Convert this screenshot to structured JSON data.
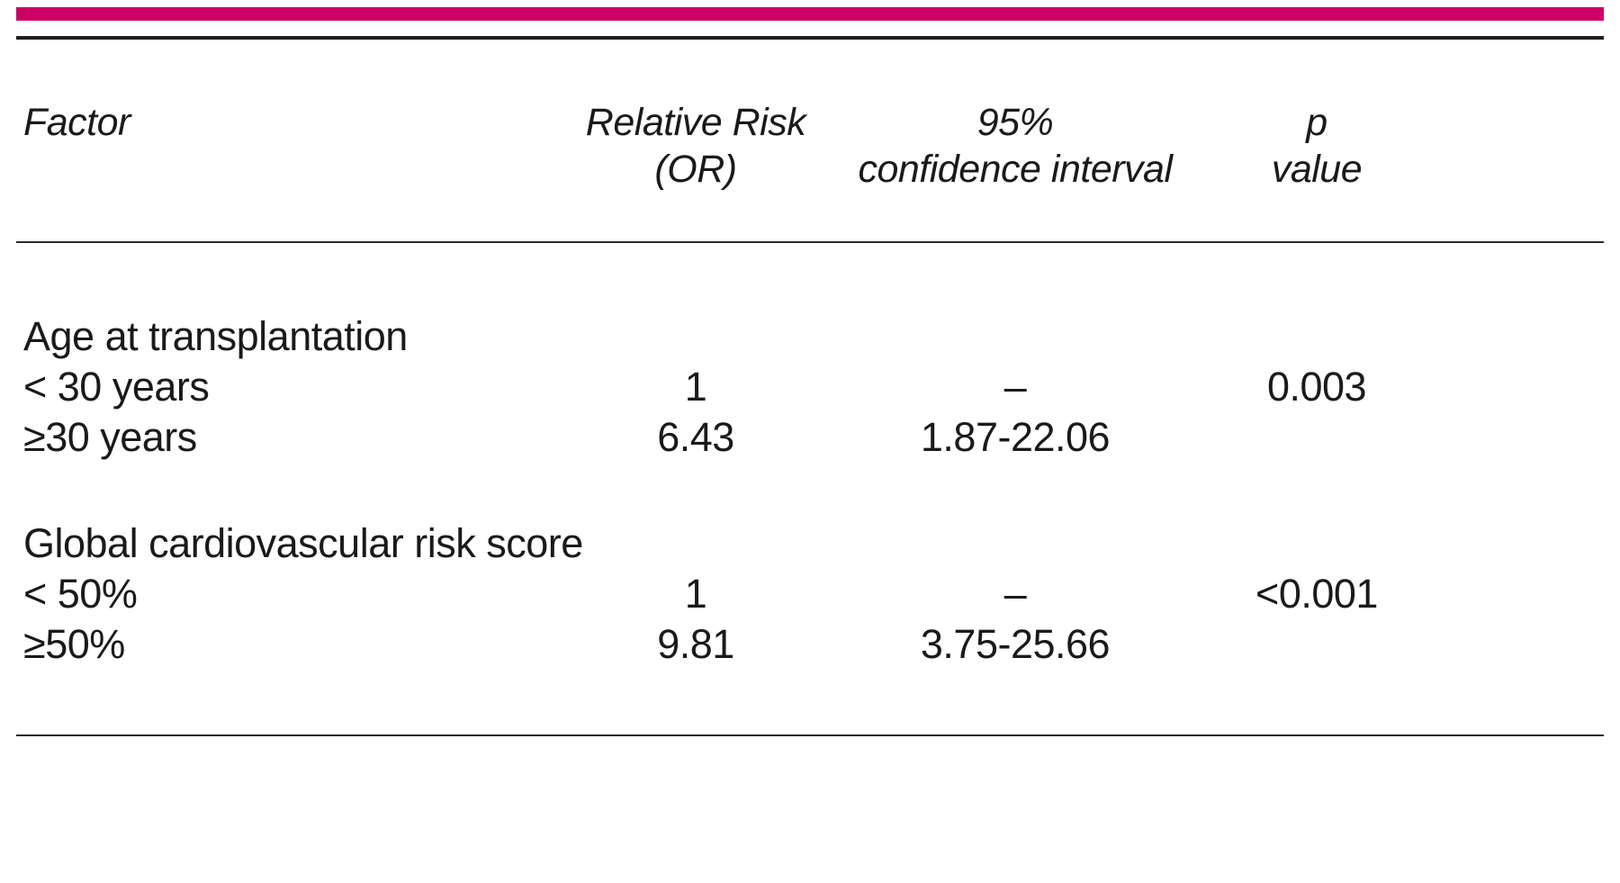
{
  "accent_color": "#cc0066",
  "text_color": "#1a1a1a",
  "table": {
    "headers": {
      "factor": "Factor",
      "relative_risk_line1": "Relative Risk",
      "relative_risk_line2": "(OR)",
      "ci_line1": "95%",
      "ci_line2": "confidence interval",
      "p_line1": "p",
      "p_line2": "value"
    },
    "groups": [
      {
        "title": "Age at transplantation",
        "rows": [
          {
            "factor": "< 30 years",
            "rr": "1",
            "ci": "–",
            "p": "0.003"
          },
          {
            "factor": "≥30 years",
            "rr": "6.43",
            "ci": "1.87-22.06",
            "p": ""
          }
        ]
      },
      {
        "title": "Global cardiovascular risk score",
        "rows": [
          {
            "factor": "< 50%",
            "rr": "1",
            "ci": "–",
            "p": "<0.001"
          },
          {
            "factor": "≥50%",
            "rr": "9.81",
            "ci": "3.75-25.66",
            "p": ""
          }
        ]
      }
    ]
  }
}
